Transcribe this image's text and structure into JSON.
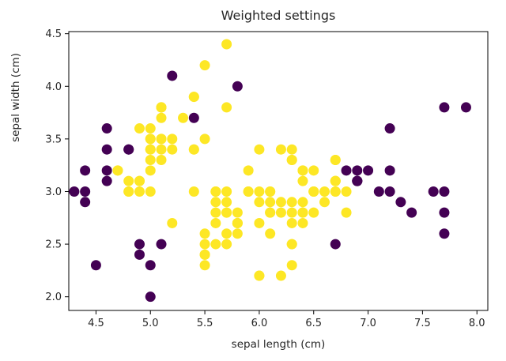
{
  "chart_data": {
    "type": "scatter",
    "title": "Weighted settings",
    "xlabel": "sepal length (cm)",
    "ylabel": "sepal width (cm)",
    "xlim": [
      4.25,
      8.1
    ],
    "ylim": [
      1.87,
      4.52
    ],
    "xticks": [
      "4.5",
      "5.0",
      "5.5",
      "6.0",
      "6.5",
      "7.0",
      "7.5",
      "8.0"
    ],
    "xtick_values": [
      4.5,
      5.0,
      5.5,
      6.0,
      6.5,
      7.0,
      7.5,
      8.0
    ],
    "yticks": [
      "2.0",
      "2.5",
      "3.0",
      "3.5",
      "4.0",
      "4.5"
    ],
    "ytick_values": [
      2.0,
      2.5,
      3.0,
      3.5,
      4.0,
      4.5
    ],
    "grid": false,
    "legend": "none",
    "marker_radius": 6.5,
    "series": [
      {
        "name": "class-0-purple",
        "color": "#440154",
        "points": [
          [
            4.6,
            3.1
          ],
          [
            4.6,
            3.4
          ],
          [
            4.4,
            2.9
          ],
          [
            5.4,
            3.7
          ],
          [
            4.8,
            3.4
          ],
          [
            4.3,
            3.0
          ],
          [
            5.8,
            4.0
          ],
          [
            4.6,
            3.6
          ],
          [
            4.8,
            3.4
          ],
          [
            5.2,
            4.1
          ],
          [
            4.4,
            3.0
          ],
          [
            4.5,
            2.3
          ],
          [
            4.4,
            3.2
          ],
          [
            4.6,
            3.2
          ],
          [
            7.0,
            3.2
          ],
          [
            6.9,
            3.1
          ],
          [
            4.9,
            2.4
          ],
          [
            5.0,
            2.0
          ],
          [
            5.0,
            2.3
          ],
          [
            5.1,
            2.5
          ],
          [
            7.1,
            3.0
          ],
          [
            7.6,
            3.0
          ],
          [
            4.9,
            2.5
          ],
          [
            7.3,
            2.9
          ],
          [
            6.7,
            2.5
          ],
          [
            7.2,
            3.6
          ],
          [
            7.7,
            3.8
          ],
          [
            7.7,
            2.6
          ],
          [
            6.9,
            3.2
          ],
          [
            7.7,
            2.8
          ],
          [
            7.2,
            3.2
          ],
          [
            7.2,
            3.0
          ],
          [
            7.4,
            2.8
          ],
          [
            7.9,
            3.8
          ],
          [
            7.7,
            3.0
          ],
          [
            6.9,
            3.1
          ],
          [
            6.9,
            3.1
          ],
          [
            6.8,
            3.2
          ]
        ]
      },
      {
        "name": "class-1-yellow",
        "color": "#fde725",
        "points": [
          [
            5.1,
            3.5
          ],
          [
            4.9,
            3.0
          ],
          [
            4.7,
            3.2
          ],
          [
            5.0,
            3.6
          ],
          [
            5.4,
            3.9
          ],
          [
            5.0,
            3.4
          ],
          [
            4.9,
            3.1
          ],
          [
            4.8,
            3.0
          ],
          [
            5.7,
            4.4
          ],
          [
            5.4,
            3.9
          ],
          [
            5.1,
            3.5
          ],
          [
            5.7,
            3.8
          ],
          [
            5.1,
            3.8
          ],
          [
            5.4,
            3.4
          ],
          [
            5.1,
            3.7
          ],
          [
            5.1,
            3.3
          ],
          [
            5.0,
            3.0
          ],
          [
            5.0,
            3.4
          ],
          [
            5.2,
            3.5
          ],
          [
            5.2,
            3.4
          ],
          [
            4.7,
            3.2
          ],
          [
            4.8,
            3.1
          ],
          [
            5.4,
            3.4
          ],
          [
            5.5,
            4.2
          ],
          [
            4.9,
            3.1
          ],
          [
            5.0,
            3.2
          ],
          [
            5.5,
            3.5
          ],
          [
            4.9,
            3.6
          ],
          [
            5.1,
            3.4
          ],
          [
            5.0,
            3.5
          ],
          [
            5.0,
            3.5
          ],
          [
            5.1,
            3.8
          ],
          [
            4.8,
            3.0
          ],
          [
            5.1,
            3.8
          ],
          [
            5.3,
            3.7
          ],
          [
            5.0,
            3.3
          ],
          [
            6.4,
            3.2
          ],
          [
            5.5,
            2.3
          ],
          [
            6.5,
            2.8
          ],
          [
            5.7,
            2.8
          ],
          [
            6.3,
            3.3
          ],
          [
            6.6,
            2.9
          ],
          [
            5.2,
            2.7
          ],
          [
            5.9,
            3.0
          ],
          [
            6.0,
            2.2
          ],
          [
            6.1,
            2.9
          ],
          [
            5.6,
            2.9
          ],
          [
            6.7,
            3.1
          ],
          [
            5.6,
            3.0
          ],
          [
            5.8,
            2.7
          ],
          [
            6.2,
            2.2
          ],
          [
            5.6,
            2.5
          ],
          [
            5.9,
            3.2
          ],
          [
            6.1,
            2.8
          ],
          [
            6.3,
            2.5
          ],
          [
            6.1,
            2.8
          ],
          [
            6.4,
            2.9
          ],
          [
            6.6,
            3.0
          ],
          [
            6.8,
            2.8
          ],
          [
            6.7,
            3.0
          ],
          [
            6.0,
            2.9
          ],
          [
            5.7,
            2.6
          ],
          [
            5.5,
            2.4
          ],
          [
            5.5,
            2.4
          ],
          [
            5.8,
            2.7
          ],
          [
            6.0,
            2.7
          ],
          [
            5.4,
            3.0
          ],
          [
            6.0,
            3.4
          ],
          [
            6.7,
            3.1
          ],
          [
            6.3,
            2.3
          ],
          [
            5.6,
            3.0
          ],
          [
            5.5,
            2.5
          ],
          [
            5.5,
            2.6
          ],
          [
            6.1,
            3.0
          ],
          [
            5.8,
            2.6
          ],
          [
            5.6,
            2.7
          ],
          [
            5.7,
            3.0
          ],
          [
            5.7,
            2.9
          ],
          [
            6.2,
            2.9
          ],
          [
            5.7,
            2.8
          ],
          [
            6.3,
            3.3
          ],
          [
            5.8,
            2.7
          ],
          [
            6.3,
            2.9
          ],
          [
            6.5,
            3.0
          ],
          [
            6.5,
            3.2
          ],
          [
            6.4,
            2.7
          ],
          [
            6.8,
            3.0
          ],
          [
            5.7,
            2.5
          ],
          [
            5.8,
            2.8
          ],
          [
            6.4,
            3.2
          ],
          [
            6.5,
            3.0
          ],
          [
            6.0,
            2.2
          ],
          [
            5.6,
            2.8
          ],
          [
            6.3,
            2.7
          ],
          [
            6.7,
            3.3
          ],
          [
            6.2,
            2.8
          ],
          [
            6.1,
            3.0
          ],
          [
            6.4,
            2.8
          ],
          [
            6.4,
            2.8
          ],
          [
            6.3,
            2.8
          ],
          [
            6.1,
            2.6
          ],
          [
            6.3,
            3.4
          ],
          [
            6.4,
            3.1
          ],
          [
            6.0,
            3.0
          ],
          [
            6.7,
            3.1
          ],
          [
            5.8,
            2.7
          ],
          [
            6.7,
            3.3
          ],
          [
            6.7,
            3.0
          ],
          [
            6.3,
            2.5
          ],
          [
            6.5,
            3.0
          ],
          [
            6.2,
            3.4
          ],
          [
            5.9,
            3.0
          ]
        ]
      }
    ]
  }
}
